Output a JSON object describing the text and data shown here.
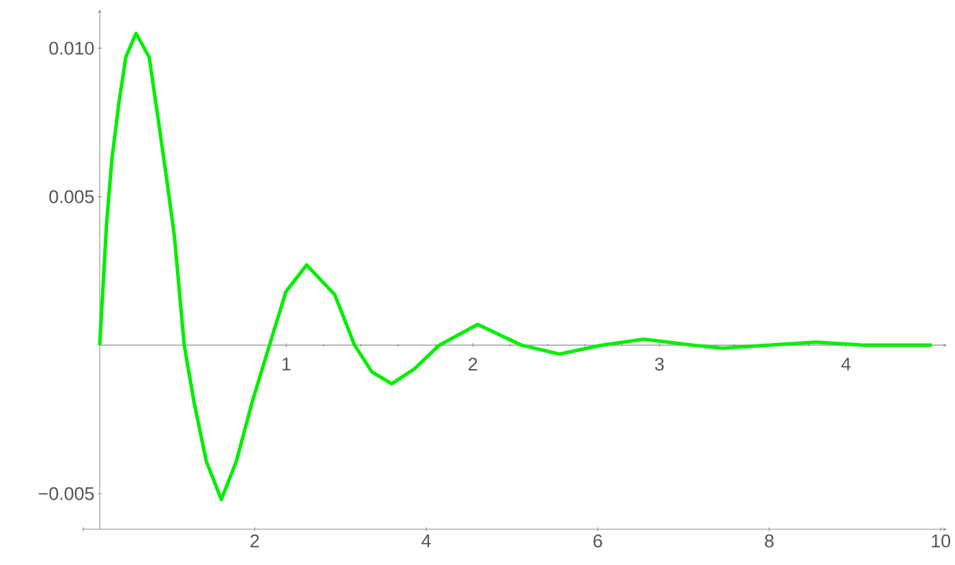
{
  "chart_data": {
    "type": "line",
    "x": [
      0,
      0.037,
      0.066,
      0.104,
      0.14,
      0.195,
      0.265,
      0.3,
      0.35,
      0.4,
      0.453,
      0.505,
      0.571,
      0.652,
      0.733,
      0.818,
      0.91,
      0.998,
      1.109,
      1.26,
      1.366,
      1.459,
      1.565,
      1.687,
      1.82,
      2.026,
      2.26,
      2.464,
      2.69,
      2.917,
      3.18,
      3.337,
      3.58,
      3.84,
      4.1,
      4.46
    ],
    "values": [
      0,
      0.0041,
      0.0063,
      0.0082,
      0.0097,
      0.0105,
      0.0097,
      0.0082,
      0.006,
      0.0037,
      0,
      -0.0019,
      -0.0039,
      -0.0052,
      -0.0039,
      -0.0019,
      0,
      0.0018,
      0.0027,
      0.0017,
      0,
      -0.0009,
      -0.0013,
      -0.0008,
      0,
      0.0007,
      0,
      -0.0003,
      0,
      0.0002,
      0,
      -0.0001,
      0,
      0.0001,
      0,
      0
    ],
    "color": "#00ee00",
    "xlim": [
      0,
      4.54
    ],
    "ylim": [
      -0.0062,
      0.0113
    ],
    "xticks": [
      1,
      2,
      3,
      4
    ],
    "yticks": [
      {
        "value": -0.005,
        "label": "−0.005"
      },
      {
        "value": 0.005,
        "label": "0.005"
      },
      {
        "value": 0.01,
        "label": "0.010"
      }
    ],
    "x2lim": [
      0,
      10.07
    ],
    "x2ticks": [
      {
        "value": 0,
        "label": null
      },
      2,
      4,
      6,
      8,
      10
    ]
  }
}
